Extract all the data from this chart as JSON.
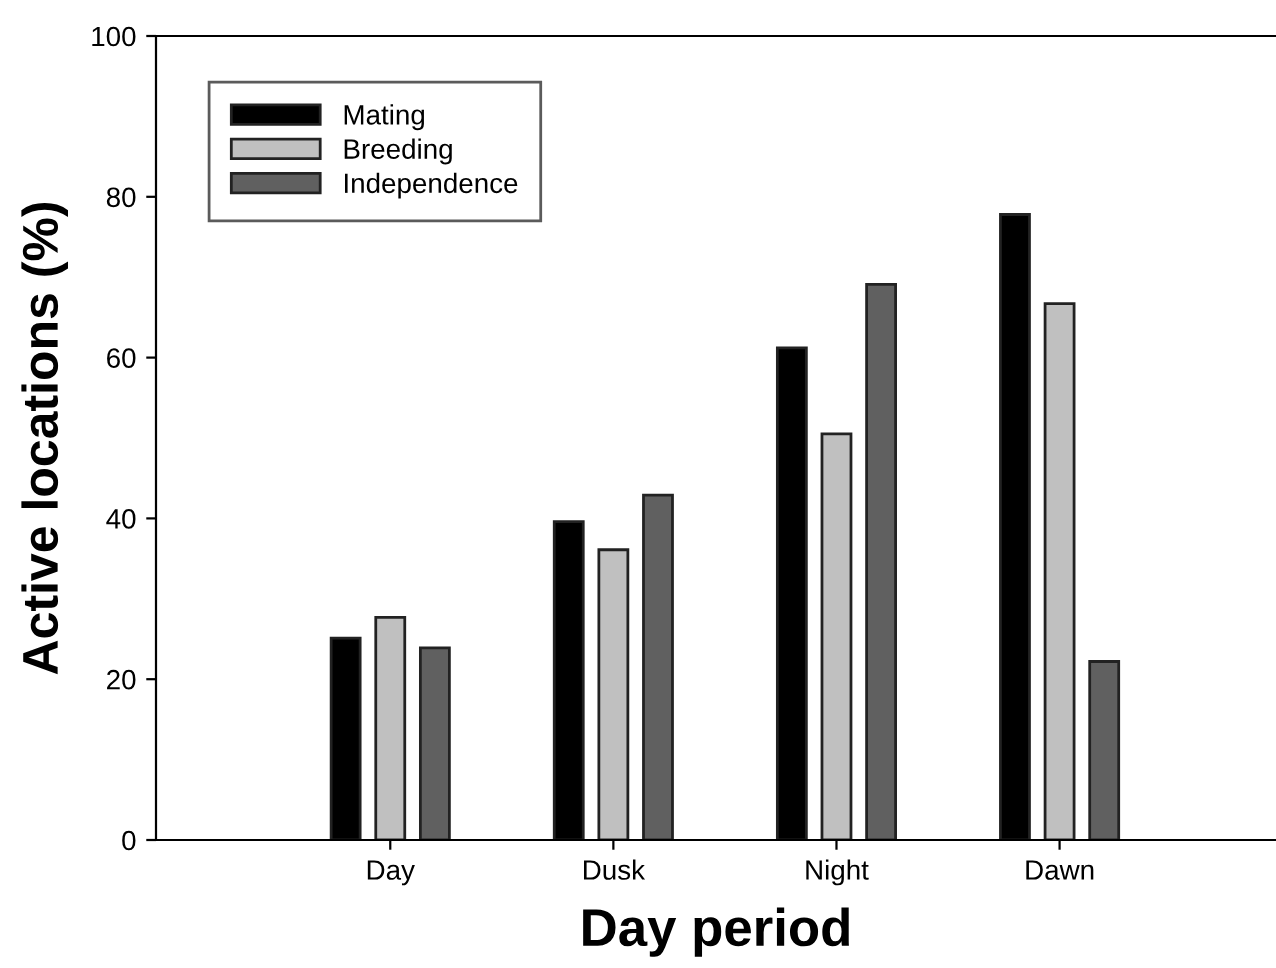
{
  "chart_data": {
    "type": "bar",
    "xlabel": "Day period",
    "ylabel": "Active locations (%)",
    "categories": [
      "Day",
      "Dusk",
      "Night",
      "Dawn"
    ],
    "series": [
      {
        "name": "Mating",
        "color": "#000000",
        "values": [
          25.1,
          39.6,
          61.2,
          77.8
        ]
      },
      {
        "name": "Breeding",
        "color": "#c0c0c0",
        "values": [
          27.7,
          36.1,
          50.5,
          66.7
        ]
      },
      {
        "name": "Independence",
        "color": "#606060",
        "values": [
          23.9,
          42.9,
          69.1,
          22.2
        ]
      }
    ],
    "ylim": [
      0,
      100
    ],
    "yticks": [
      0,
      20,
      40,
      60,
      80,
      100
    ],
    "grid": false,
    "legend": "top left"
  }
}
